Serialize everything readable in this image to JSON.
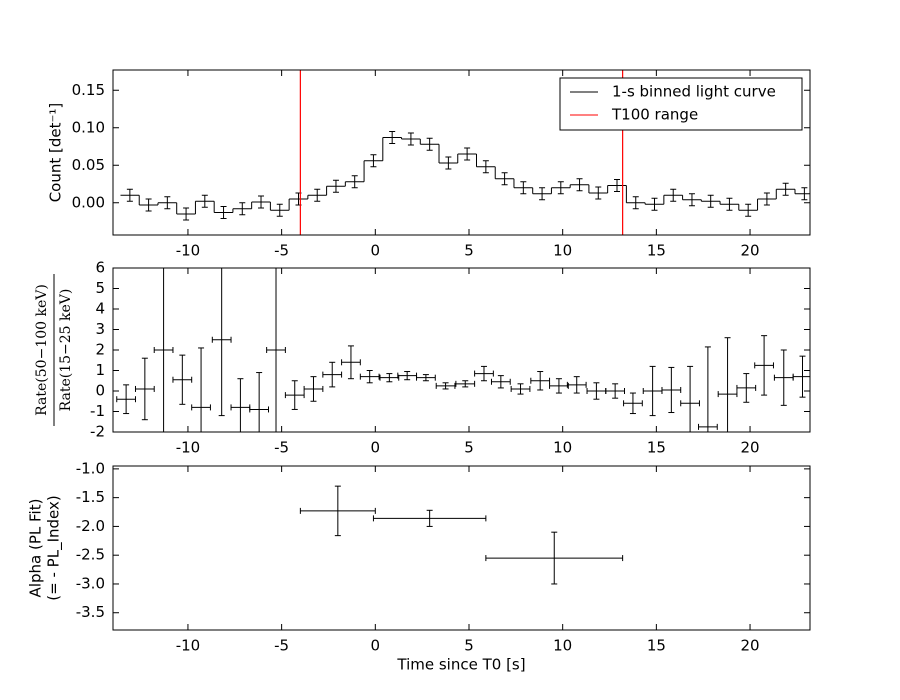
{
  "chart_data": [
    {
      "type": "histogram",
      "ylabel": "Count [det⁻¹]",
      "bins": [
        -13.6,
        -12.6,
        -11.6,
        -10.6,
        -9.6,
        -8.6,
        -7.6,
        -6.6,
        -5.6,
        -4.6,
        -3.6,
        -2.6,
        -1.6,
        -0.6,
        0.4,
        1.4,
        2.4,
        3.4,
        4.4,
        5.4,
        6.4,
        7.4,
        8.4,
        9.4,
        10.4,
        11.4,
        12.4,
        13.4,
        14.4,
        15.4,
        16.4,
        17.4,
        18.4,
        19.4,
        20.4,
        21.4,
        22.4,
        23.4
      ],
      "series": [
        {
          "name": "1-s binned light curve",
          "color": "#000000",
          "values": [
            0.01,
            -0.003,
            0.0,
            -0.015,
            0.002,
            -0.013,
            -0.008,
            0.001,
            -0.01,
            0.005,
            0.01,
            0.022,
            0.028,
            0.056,
            0.087,
            0.085,
            0.078,
            0.053,
            0.065,
            0.048,
            0.032,
            0.02,
            0.012,
            0.02,
            0.024,
            0.013,
            0.023,
            0.0,
            -0.002,
            0.01,
            0.004,
            0.002,
            -0.002,
            -0.01,
            0.005,
            0.018,
            0.012
          ],
          "errors": [
            0.008,
            0.008,
            0.008,
            0.008,
            0.008,
            0.008,
            0.008,
            0.008,
            0.008,
            0.008,
            0.008,
            0.008,
            0.008,
            0.008,
            0.008,
            0.008,
            0.008,
            0.008,
            0.008,
            0.008,
            0.008,
            0.008,
            0.008,
            0.008,
            0.008,
            0.008,
            0.008,
            0.008,
            0.008,
            0.008,
            0.008,
            0.008,
            0.008,
            0.008,
            0.008,
            0.008,
            0.008
          ]
        }
      ],
      "vlines": {
        "name": "T100 range",
        "color": "#ff0000",
        "x": [
          -4.0,
          13.2
        ]
      },
      "legend": "upper right",
      "xlim": [
        -14,
        23.2
      ],
      "ylim": [
        -0.043,
        0.177
      ],
      "xticks": [
        -10,
        -5,
        0,
        5,
        10,
        15,
        20
      ],
      "yticks": [
        {
          "value": 0,
          "label": "0.00"
        },
        {
          "value": 0.05,
          "label": "0.05"
        },
        {
          "value": 0.1,
          "label": "0.10"
        },
        {
          "value": 0.15,
          "label": "0.15"
        }
      ]
    },
    {
      "type": "errorbar",
      "ylabel": {
        "numerator": "Rate(50−100 keV)",
        "denominator": "Rate(15−25 keV)"
      },
      "x": [
        -13.3,
        -12.3,
        -11.3,
        -10.3,
        -9.3,
        -8.2,
        -7.2,
        -6.2,
        -5.3,
        -4.3,
        -3.3,
        -2.3,
        -1.3,
        -0.3,
        0.75,
        1.7,
        2.7,
        3.75,
        4.8,
        5.8,
        6.7,
        7.75,
        8.8,
        9.8,
        10.75,
        11.8,
        12.8,
        13.75,
        14.8,
        15.8,
        16.8,
        17.75,
        18.8,
        19.8,
        20.75,
        21.8,
        22.8
      ],
      "values": [
        -0.4,
        0.1,
        2,
        0.55,
        -0.8,
        2.5,
        -0.8,
        -0.9,
        2,
        -0.2,
        0.1,
        0.8,
        1.4,
        0.7,
        0.65,
        0.75,
        0.65,
        0.25,
        0.35,
        0.85,
        0.45,
        0.1,
        0.5,
        0.25,
        0.3,
        0.0,
        0.0,
        -0.6,
        0.0,
        0.05,
        -0.6,
        -1.75,
        -0.15,
        0.15,
        1.25,
        0.65,
        0.7
      ],
      "xerr": [
        0.5,
        0.5,
        0.5,
        0.5,
        0.5,
        0.5,
        0.5,
        0.5,
        0.5,
        0.5,
        0.5,
        0.5,
        0.5,
        0.5,
        0.5,
        0.5,
        0.5,
        0.5,
        0.5,
        0.5,
        0.5,
        0.5,
        0.5,
        0.5,
        0.5,
        0.5,
        0.5,
        0.5,
        0.5,
        0.5,
        0.5,
        0.5,
        0.5,
        0.5,
        0.5,
        0.5,
        0.5
      ],
      "yerr": [
        0.7,
        1.5,
        8,
        1.2,
        2.9,
        3.7,
        1.4,
        1.8,
        8,
        0.7,
        0.6,
        0.6,
        0.8,
        0.3,
        0.2,
        0.2,
        0.15,
        0.15,
        0.15,
        0.35,
        0.3,
        0.25,
        0.45,
        0.35,
        0.4,
        0.4,
        0.35,
        0.5,
        1.2,
        1.1,
        1.8,
        3.9,
        2.75,
        0.7,
        1.45,
        1.35,
        1.0
      ],
      "color": "#000000",
      "xlim": [
        -14,
        23.2
      ],
      "ylim": [
        -2,
        6
      ],
      "xticks": [
        -10,
        -5,
        0,
        5,
        10,
        15,
        20
      ],
      "yticks": [
        -2,
        -1,
        0,
        1,
        2,
        3,
        4,
        5,
        6
      ]
    },
    {
      "type": "errorbar",
      "ylabel": [
        "Alpha (PL Fit)",
        "(= - PL_Index)"
      ],
      "xlabel": "Time since T0 [s]",
      "x": [
        -2.0,
        2.9,
        9.55
      ],
      "values": [
        -1.73,
        -1.86,
        -2.55
      ],
      "xerr": [
        2.0,
        3.0,
        3.65
      ],
      "yerr": [
        0.43,
        0.14,
        0.45
      ],
      "color": "#000000",
      "xlim": [
        -14,
        23.2
      ],
      "ylim": [
        -3.8,
        -0.95
      ],
      "xticks": [
        -10,
        -5,
        0,
        5,
        10,
        15,
        20
      ],
      "yticks": [
        {
          "value": -3.5,
          "label": "-3.5"
        },
        {
          "value": -3,
          "label": "-3.0"
        },
        {
          "value": -2.5,
          "label": "-2.5"
        },
        {
          "value": -2,
          "label": "-2.0"
        },
        {
          "value": -1.5,
          "label": "-1.5"
        },
        {
          "value": -1,
          "label": "-1.0"
        }
      ]
    }
  ]
}
